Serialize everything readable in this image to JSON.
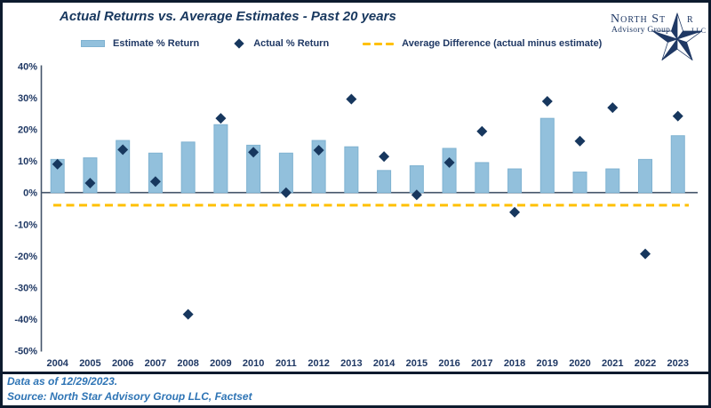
{
  "footer": {
    "data_as_of": "Data as of 12/29/2023.",
    "source": "Source: North Star Advisory Group LLC, Factset"
  },
  "logo": {
    "name_part1": "North St",
    "name_part2": "r",
    "subtitle": "Advisory Group",
    "suffix": "LLC"
  },
  "colors": {
    "estimate_bar": "#92c0dc",
    "estimate_bar_border": "#7fb2d1",
    "actual_diamond": "#17375e",
    "average_dash": "#ffc000",
    "axis": "#44546a",
    "title_text": "#17375e",
    "footer_text": "#2e74b5",
    "frame_border": "#0d1b2e"
  },
  "chart_data": {
    "type": "bar",
    "title": "Actual Returns vs. Average Estimates - Past 20 years",
    "categories": [
      "2004",
      "2005",
      "2006",
      "2007",
      "2008",
      "2009",
      "2010",
      "2011",
      "2012",
      "2013",
      "2014",
      "2015",
      "2016",
      "2017",
      "2018",
      "2019",
      "2020",
      "2021",
      "2022",
      "2023"
    ],
    "series": [
      {
        "name": "Estimate % Return",
        "type": "bar",
        "color": "#92c0dc",
        "values": [
          10.5,
          11,
          16.5,
          12.5,
          16,
          21.5,
          15,
          12.5,
          16.5,
          14.5,
          7,
          8.5,
          14,
          9.5,
          7.5,
          23.5,
          6.5,
          7.5,
          10.5,
          18
        ]
      },
      {
        "name": "Actual % Return",
        "type": "scatter",
        "marker": "diamond",
        "color": "#17375e",
        "values": [
          9.0,
          3.0,
          13.6,
          3.5,
          -38.5,
          23.5,
          12.8,
          0.0,
          13.4,
          29.6,
          11.4,
          -0.7,
          9.5,
          19.4,
          -6.2,
          28.9,
          16.3,
          26.9,
          -19.4,
          24.2
        ]
      },
      {
        "name": "Average Difference (actual minus estimate)",
        "type": "line",
        "style": "dashed",
        "color": "#ffc000",
        "value": -4.0
      }
    ],
    "xlabel": "",
    "ylabel": "",
    "ylim": [
      -50,
      40
    ],
    "y_tick_step": 10,
    "y_ticks": [
      "40%",
      "30%",
      "20%",
      "10%",
      "0%",
      "-10%",
      "-20%",
      "-30%",
      "-40%",
      "-50%"
    ],
    "grid": false,
    "legend_position": "top"
  }
}
